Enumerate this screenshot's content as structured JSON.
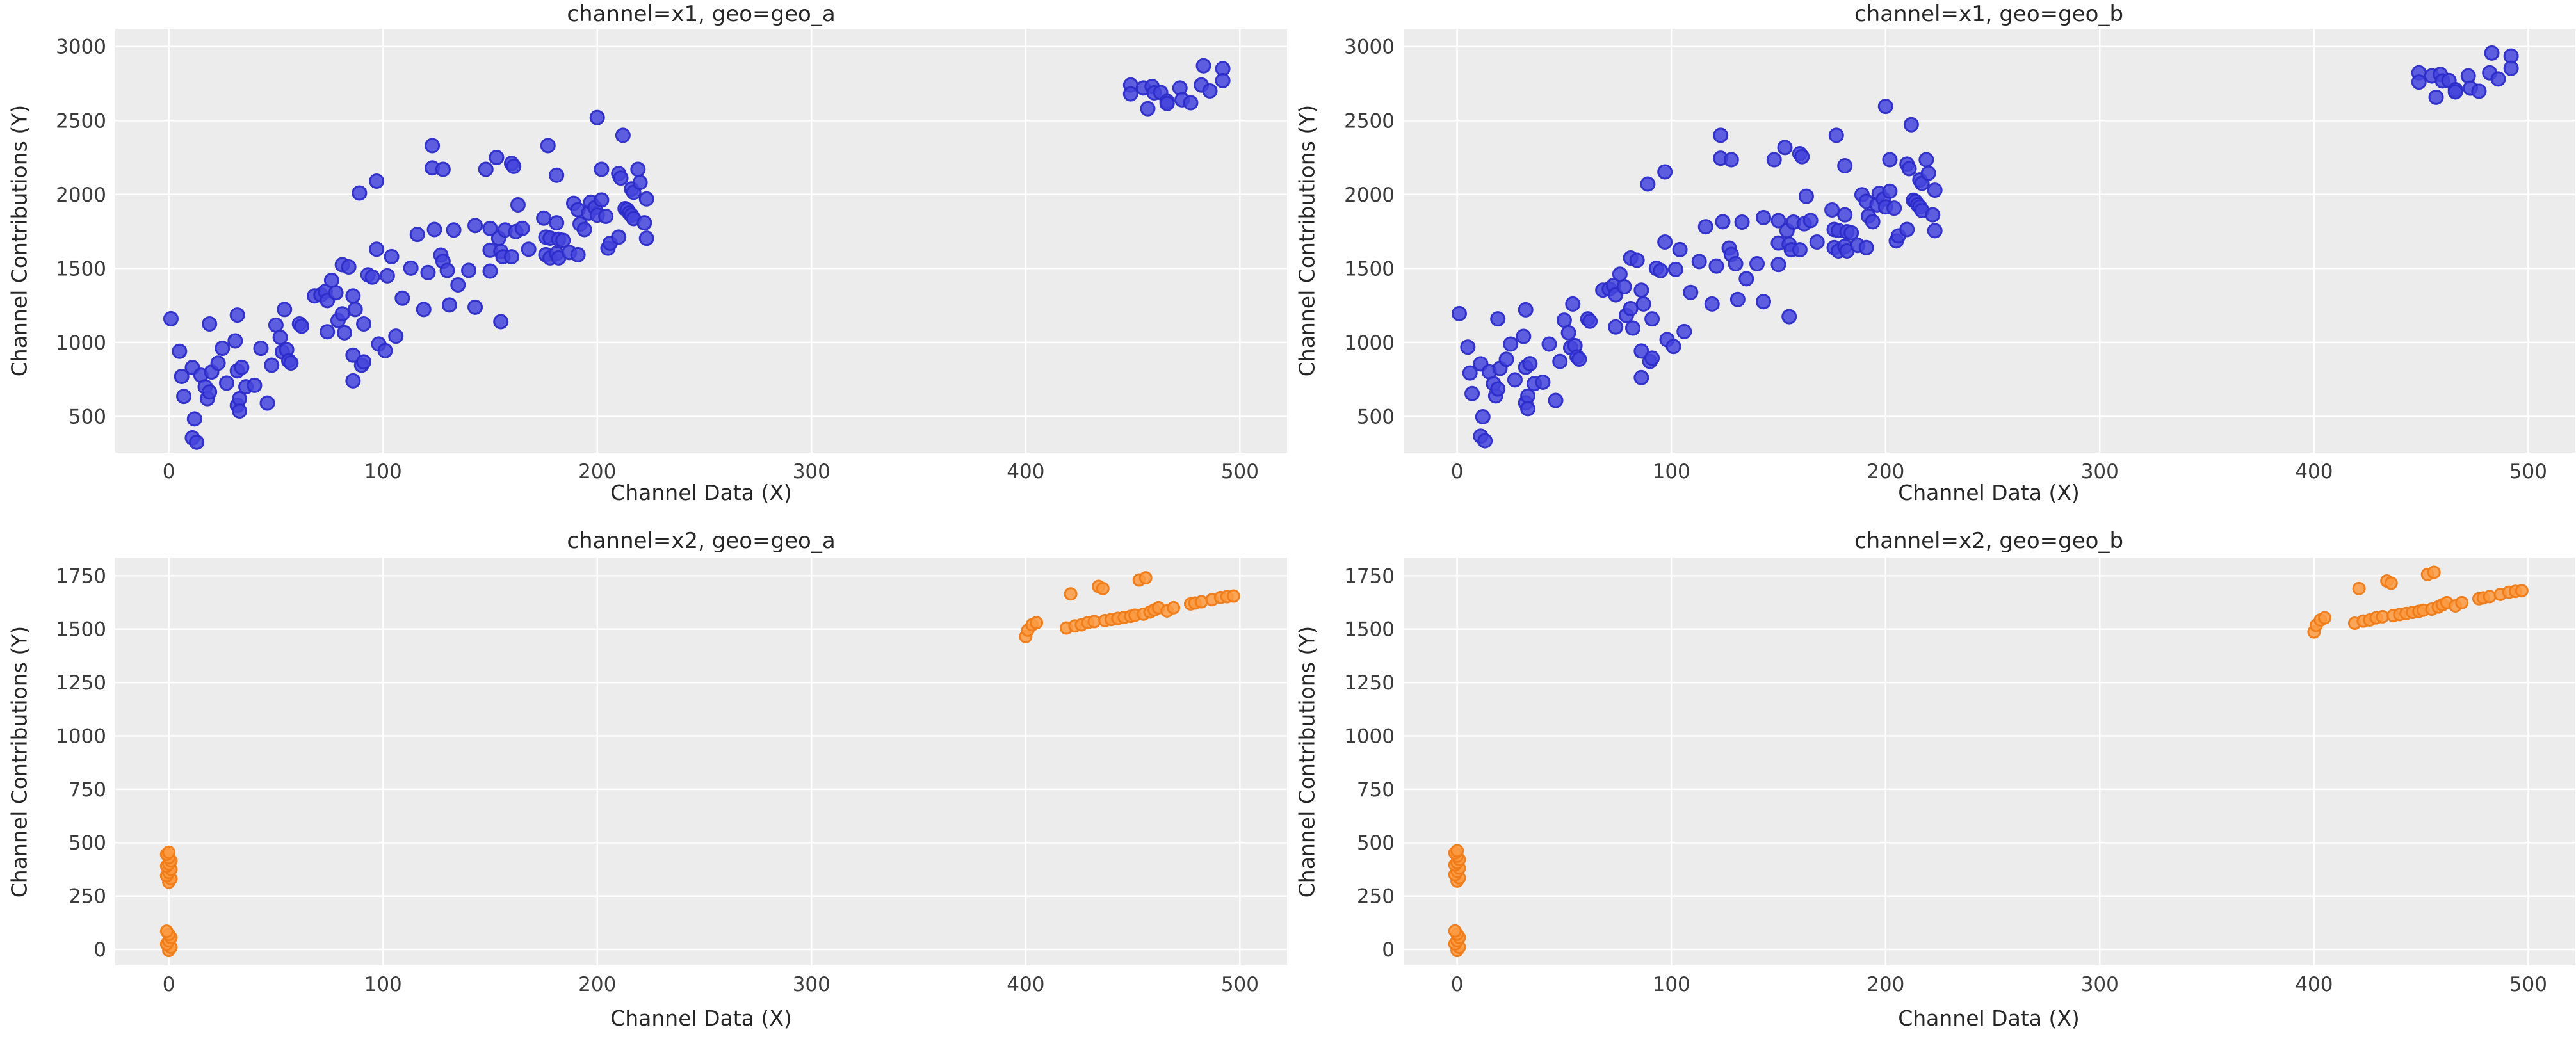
{
  "figure": {
    "background": "#ffffff",
    "kind": "matplotlib-scatter-facet-grid"
  },
  "style": {
    "plot_bg": "#ececec",
    "grid_color": "#ffffff",
    "tick_color": "#3c3c3c",
    "label_color": "#262626",
    "blue_fill": "#4444dd",
    "blue_stroke": "#2c2cc9",
    "orange_fill": "#fb9a42",
    "orange_stroke": "#ef7b17"
  },
  "chart_data": {
    "type": "scatter",
    "grid": "on",
    "legend": "none",
    "charts": [
      {
        "title": "channel=x1, geo=geo_a",
        "xlabel": "Channel Data (X)",
        "ylabel": "Channel Contributions (Y)",
        "series": "x1",
        "y_scale": 1.0,
        "xlim": [
          -25,
          522
        ],
        "ylim": [
          255,
          3120
        ],
        "xticks": [
          0,
          100,
          200,
          300,
          400,
          500
        ],
        "yticks": [
          500,
          1000,
          1500,
          2000,
          2500,
          3000
        ]
      },
      {
        "title": "channel=x1, geo=geo_b",
        "xlabel": "Channel Data (X)",
        "ylabel": "Channel Contributions (Y)",
        "series": "x1",
        "y_scale": 1.03,
        "xlim": [
          -25,
          522
        ],
        "ylim": [
          255,
          3120
        ],
        "xticks": [
          0,
          100,
          200,
          300,
          400,
          500
        ],
        "yticks": [
          500,
          1000,
          1500,
          2000,
          2500,
          3000
        ]
      },
      {
        "title": "channel=x2, geo=geo_a",
        "xlabel": "Channel Data (X)",
        "ylabel": "Channel Contributions (Y)",
        "series": "x2",
        "y_scale": 1.0,
        "xlim": [
          -25,
          522
        ],
        "ylim": [
          -75,
          1835
        ],
        "xticks": [
          0,
          100,
          200,
          300,
          400,
          500
        ],
        "yticks": [
          0,
          250,
          500,
          750,
          1000,
          1250,
          1500,
          1750
        ]
      },
      {
        "title": "channel=x2, geo=geo_b",
        "xlabel": "Channel Data (X)",
        "ylabel": "Channel Contributions (Y)",
        "series": "x2",
        "y_scale": 1.015,
        "xlim": [
          -25,
          522
        ],
        "ylim": [
          -75,
          1835
        ],
        "xticks": [
          0,
          100,
          200,
          300,
          400,
          500
        ],
        "yticks": [
          0,
          250,
          500,
          750,
          1000,
          1250,
          1500,
          1750
        ]
      }
    ],
    "series": {
      "x1": {
        "color_fill": "#4444dd",
        "color_stroke": "#2c2cc9",
        "marker_radius": 10.5,
        "points": [
          [
            1,
            1160
          ],
          [
            5,
            940
          ],
          [
            6,
            770
          ],
          [
            7,
            635
          ],
          [
            11,
            830
          ],
          [
            11,
            355
          ],
          [
            12,
            483
          ],
          [
            13,
            325
          ],
          [
            15,
            778
          ],
          [
            17,
            700
          ],
          [
            18,
            620
          ],
          [
            19,
            1125
          ],
          [
            19,
            665
          ],
          [
            20,
            800
          ],
          [
            23,
            860
          ],
          [
            25,
            960
          ],
          [
            27,
            725
          ],
          [
            31,
            1010
          ],
          [
            32,
            1185
          ],
          [
            32,
            808
          ],
          [
            32,
            574
          ],
          [
            33,
            619
          ],
          [
            33,
            536
          ],
          [
            34,
            831
          ],
          [
            36,
            700
          ],
          [
            40,
            710
          ],
          [
            43,
            960
          ],
          [
            46,
            590
          ],
          [
            48,
            846
          ],
          [
            50,
            1117
          ],
          [
            52,
            1034
          ],
          [
            53,
            936
          ],
          [
            54,
            1223
          ],
          [
            55,
            950
          ],
          [
            56,
            876
          ],
          [
            57,
            861
          ],
          [
            61,
            1125
          ],
          [
            62,
            1110
          ],
          [
            68,
            1314
          ],
          [
            71,
            1321
          ],
          [
            73,
            1344
          ],
          [
            74,
            1283
          ],
          [
            74,
            1072
          ],
          [
            76,
            1419
          ],
          [
            78,
            1336
          ],
          [
            79,
            1148
          ],
          [
            81,
            1525
          ],
          [
            81,
            1193
          ],
          [
            82,
            1065
          ],
          [
            84,
            1510
          ],
          [
            86,
            1314
          ],
          [
            86,
            914
          ],
          [
            86,
            740
          ],
          [
            87,
            1223
          ],
          [
            89,
            2010
          ],
          [
            90,
            846
          ],
          [
            91,
            1125
          ],
          [
            91,
            868
          ],
          [
            93,
            1457
          ],
          [
            95,
            1442
          ],
          [
            97,
            2090
          ],
          [
            97,
            1630
          ],
          [
            98,
            989
          ],
          [
            101,
            944
          ],
          [
            102,
            1450
          ],
          [
            104,
            1580
          ],
          [
            106,
            1042
          ],
          [
            109,
            1299
          ],
          [
            113,
            1502
          ],
          [
            116,
            1730
          ],
          [
            119,
            1223
          ],
          [
            121,
            1472
          ],
          [
            123,
            2330
          ],
          [
            123,
            2180
          ],
          [
            124,
            1763
          ],
          [
            127,
            1590
          ],
          [
            128,
            2170
          ],
          [
            128,
            1548
          ],
          [
            130,
            1487
          ],
          [
            131,
            1253
          ],
          [
            133,
            1760
          ],
          [
            135,
            1389
          ],
          [
            140,
            1487
          ],
          [
            143,
            1790
          ],
          [
            143,
            1238
          ],
          [
            148,
            2170
          ],
          [
            150,
            1770
          ],
          [
            150,
            1623
          ],
          [
            150,
            1482
          ],
          [
            153,
            2250
          ],
          [
            154,
            1704
          ],
          [
            155,
            1615
          ],
          [
            155,
            1140
          ],
          [
            156,
            1579
          ],
          [
            157,
            1760
          ],
          [
            160,
            2210
          ],
          [
            160,
            1579
          ],
          [
            161,
            2190
          ],
          [
            162,
            1749
          ],
          [
            163,
            1930
          ],
          [
            165,
            1771
          ],
          [
            168,
            1630
          ],
          [
            175,
            1840
          ],
          [
            176,
            1712
          ],
          [
            176,
            1593
          ],
          [
            177,
            2330
          ],
          [
            178,
            1705
          ],
          [
            178,
            1571
          ],
          [
            181,
            2130
          ],
          [
            181,
            1808
          ],
          [
            181,
            1601
          ],
          [
            182,
            1697
          ],
          [
            182,
            1571
          ],
          [
            184,
            1690
          ],
          [
            187,
            1608
          ],
          [
            189,
            1940
          ],
          [
            191,
            1897
          ],
          [
            191,
            1593
          ],
          [
            192,
            1800
          ],
          [
            194,
            1763
          ],
          [
            196,
            1874
          ],
          [
            197,
            1948
          ],
          [
            199,
            1911
          ],
          [
            200,
            2520
          ],
          [
            200,
            1860
          ],
          [
            202,
            2170
          ],
          [
            202,
            1963
          ],
          [
            204,
            1852
          ],
          [
            205,
            1637
          ],
          [
            206,
            1670
          ],
          [
            210,
            2141
          ],
          [
            210,
            1712
          ],
          [
            211,
            2111
          ],
          [
            212,
            2400
          ],
          [
            213,
            1904
          ],
          [
            214,
            1896
          ],
          [
            215,
            1874
          ],
          [
            216,
            2037
          ],
          [
            216,
            1860
          ],
          [
            217,
            2015
          ],
          [
            217,
            1837
          ],
          [
            219,
            2170
          ],
          [
            220,
            2081
          ],
          [
            222,
            1808
          ],
          [
            223,
            1970
          ],
          [
            223,
            1704
          ],
          [
            449,
            2740
          ],
          [
            449,
            2680
          ],
          [
            455,
            2720
          ],
          [
            457,
            2580
          ],
          [
            459,
            2730
          ],
          [
            460,
            2687
          ],
          [
            463,
            2690
          ],
          [
            466,
            2630
          ],
          [
            466,
            2615
          ],
          [
            472,
            2720
          ],
          [
            473,
            2640
          ],
          [
            477,
            2620
          ],
          [
            482,
            2740
          ],
          [
            483,
            2870
          ],
          [
            486,
            2700
          ],
          [
            492,
            2850
          ],
          [
            492,
            2770
          ]
        ]
      },
      "x2": {
        "color_fill": "#fb9a42",
        "color_stroke": "#ef7b17",
        "marker_radius": 9,
        "points": [
          [
            0,
            315
          ],
          [
            1,
            330
          ],
          [
            -1,
            345
          ],
          [
            0,
            360
          ],
          [
            1,
            375
          ],
          [
            -1,
            390
          ],
          [
            0,
            400
          ],
          [
            1,
            415
          ],
          [
            0,
            430
          ],
          [
            -1,
            445
          ],
          [
            0,
            455
          ],
          [
            0,
            -5
          ],
          [
            1,
            10
          ],
          [
            -1,
            25
          ],
          [
            0,
            40
          ],
          [
            1,
            55
          ],
          [
            0,
            70
          ],
          [
            -1,
            85
          ],
          [
            400,
            1465
          ],
          [
            401,
            1495
          ],
          [
            403,
            1520
          ],
          [
            405,
            1530
          ],
          [
            419,
            1505
          ],
          [
            421,
            1665
          ],
          [
            423,
            1515
          ],
          [
            426,
            1520
          ],
          [
            429,
            1530
          ],
          [
            432,
            1535
          ],
          [
            434,
            1700
          ],
          [
            436,
            1690
          ],
          [
            437,
            1540
          ],
          [
            440,
            1545
          ],
          [
            443,
            1550
          ],
          [
            446,
            1555
          ],
          [
            449,
            1560
          ],
          [
            451,
            1565
          ],
          [
            453,
            1730
          ],
          [
            455,
            1570
          ],
          [
            456,
            1740
          ],
          [
            458,
            1580
          ],
          [
            460,
            1590
          ],
          [
            462,
            1600
          ],
          [
            466,
            1585
          ],
          [
            469,
            1600
          ],
          [
            477,
            1618
          ],
          [
            479,
            1622
          ],
          [
            482,
            1628
          ],
          [
            487,
            1638
          ],
          [
            491,
            1648
          ],
          [
            494,
            1652
          ],
          [
            497,
            1655
          ]
        ]
      }
    }
  }
}
